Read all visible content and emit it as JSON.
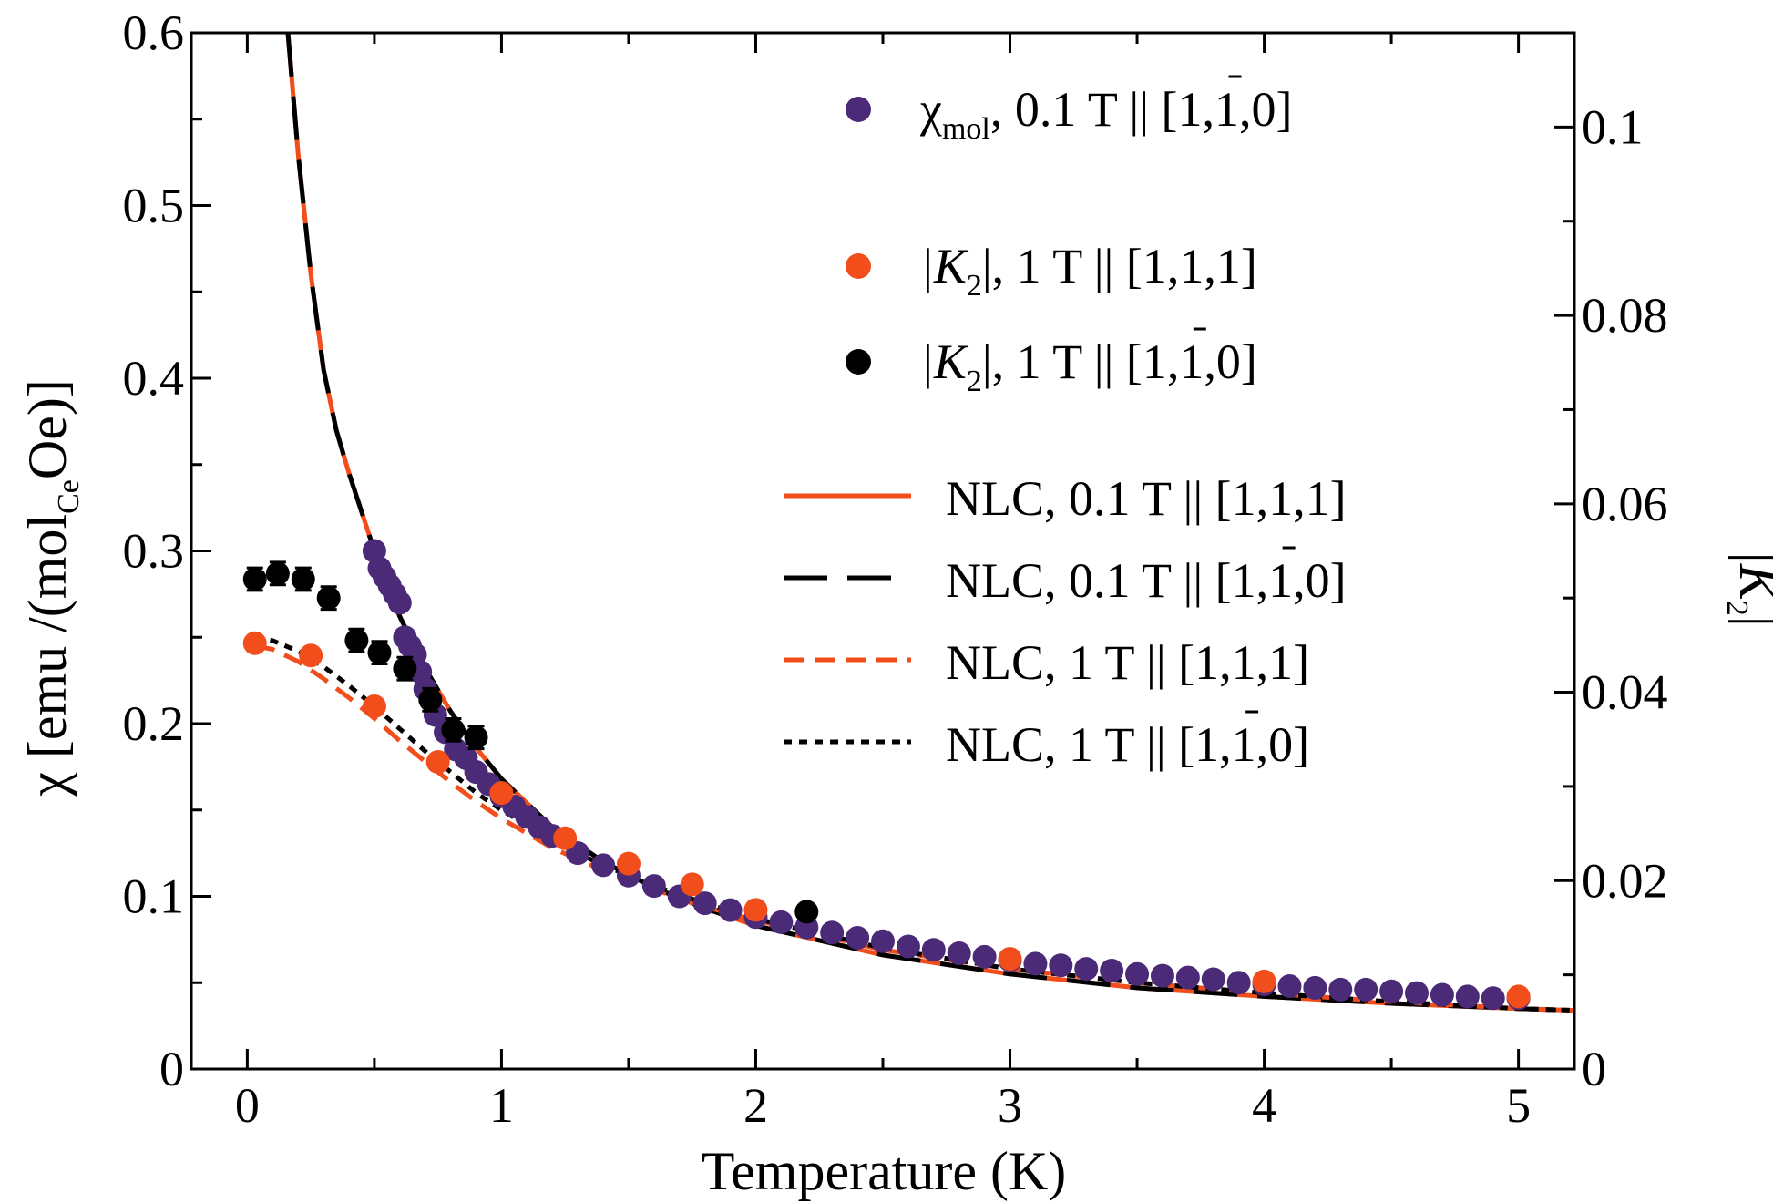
{
  "chart_data": {
    "type": "scatter",
    "title": "",
    "xlabel": "Temperature (K)",
    "ylabel": {
      "prefix": "χ [emu /(mol",
      "subscript": "Ce",
      "suffix": "Oe)]"
    },
    "y2label": {
      "text": "|K",
      "subscript": "2",
      "end": "|"
    },
    "xlim": [
      -0.22,
      5.22
    ],
    "ylim": [
      0,
      0.6
    ],
    "y2lim": [
      0,
      0.11
    ],
    "x_ticks": [
      0,
      1,
      2,
      3,
      4,
      5
    ],
    "x_tick_labels": [
      "0",
      "1",
      "2",
      "3",
      "4",
      "5"
    ],
    "y_ticks": [
      0,
      0.1,
      0.2,
      0.3,
      0.4,
      0.5,
      0.6
    ],
    "y_tick_labels": [
      "0",
      "0.1",
      "0.2",
      "0.3",
      "0.4",
      "0.5",
      "0.6"
    ],
    "y2_ticks": [
      0,
      0.02,
      0.04,
      0.06,
      0.08,
      0.1
    ],
    "y2_tick_labels": [
      "0",
      "0.02",
      "0.04",
      "0.06",
      "0.08",
      "0.1"
    ],
    "grid": false,
    "legend_position": "top-right",
    "colors": {
      "purple": "#4b2a78",
      "orange": "#f24e1c",
      "black": "#000000"
    },
    "legend": [
      {
        "marker": "circle",
        "color": "#4b2a78",
        "label_main": "χ",
        "label_sub": "mol",
        "label_rest": ",  0.1 T || [1,1,0]",
        "bar_over": true
      },
      {
        "marker": "circle",
        "color": "#f24e1c",
        "label_main": "|K",
        "label_sub": "2",
        "label_rest": "|,  1 T || [1,1,1]",
        "bar_over": false
      },
      {
        "marker": "circle",
        "color": "#000000",
        "label_main": "|K",
        "label_sub": "2",
        "label_rest": "|,  1 T || [1,1,0]",
        "bar_over": true
      },
      {
        "marker": "line-solid",
        "color": "#f24e1c",
        "label_main": "NLC,  0.1 T || [1,1,1]",
        "label_sub": "",
        "label_rest": "",
        "bar_over": false
      },
      {
        "marker": "line-longdash",
        "color": "#000000",
        "label_main": "NLC,  0.1 T || [1,1,0]",
        "label_sub": "",
        "label_rest": "",
        "bar_over": true
      },
      {
        "marker": "line-dash",
        "color": "#f24e1c",
        "label_main": "NLC,  1 T || [1,1,1]",
        "label_sub": "",
        "label_rest": "",
        "bar_over": false
      },
      {
        "marker": "line-dot",
        "color": "#000000",
        "label_main": "NLC,  1 T || [1,1,0]",
        "label_sub": "",
        "label_rest": "",
        "bar_over": true
      }
    ],
    "series": [
      {
        "name": "chi_mol 0.1 T || [1,-1,0]",
        "axis": "left",
        "kind": "points",
        "color": "#4b2a78",
        "x": [
          0.5,
          0.52,
          0.54,
          0.56,
          0.58,
          0.6,
          0.62,
          0.64,
          0.66,
          0.68,
          0.7,
          0.74,
          0.78,
          0.82,
          0.86,
          0.9,
          0.95,
          1.0,
          1.05,
          1.1,
          1.15,
          1.2,
          1.3,
          1.4,
          1.5,
          1.6,
          1.7,
          1.8,
          1.9,
          2.0,
          2.1,
          2.2,
          2.3,
          2.4,
          2.5,
          2.6,
          2.7,
          2.8,
          2.9,
          3.0,
          3.1,
          3.2,
          3.3,
          3.4,
          3.5,
          3.6,
          3.7,
          3.8,
          3.9,
          4.0,
          4.1,
          4.2,
          4.3,
          4.4,
          4.5,
          4.6,
          4.7,
          4.8,
          4.9,
          5.0
        ],
        "y": [
          0.3,
          0.29,
          0.285,
          0.28,
          0.275,
          0.27,
          0.25,
          0.245,
          0.24,
          0.23,
          0.22,
          0.205,
          0.195,
          0.185,
          0.18,
          0.172,
          0.165,
          0.158,
          0.152,
          0.146,
          0.14,
          0.135,
          0.125,
          0.118,
          0.112,
          0.106,
          0.1,
          0.096,
          0.092,
          0.088,
          0.085,
          0.082,
          0.079,
          0.076,
          0.074,
          0.071,
          0.069,
          0.067,
          0.065,
          0.063,
          0.061,
          0.06,
          0.058,
          0.057,
          0.055,
          0.054,
          0.053,
          0.052,
          0.05,
          0.049,
          0.048,
          0.047,
          0.046,
          0.046,
          0.045,
          0.044,
          0.043,
          0.042,
          0.041,
          0.041
        ]
      },
      {
        "name": "|K2| 1 T || [1,1,1]",
        "axis": "right",
        "kind": "points",
        "color": "#f24e1c",
        "x": [
          0.03,
          0.25,
          0.5,
          0.75,
          1.0,
          1.25,
          1.5,
          1.75,
          2.0,
          3.0,
          4.0,
          5.0
        ],
        "y": [
          0.0452,
          0.0439,
          0.0385,
          0.0326,
          0.0293,
          0.0245,
          0.0218,
          0.0196,
          0.0169,
          0.0117,
          0.0093,
          0.0077
        ]
      },
      {
        "name": "|K2| 1 T || [1,-1,0]",
        "axis": "right",
        "kind": "points",
        "color": "#000000",
        "x": [
          0.03,
          0.12,
          0.22,
          0.32,
          0.43,
          0.52,
          0.62,
          0.72,
          0.81,
          0.9,
          2.2
        ],
        "y": [
          0.052,
          0.0526,
          0.052,
          0.05,
          0.0455,
          0.0442,
          0.0425,
          0.0392,
          0.036,
          0.0352,
          0.0167
        ],
        "yerr": [
          0.0012,
          0.0012,
          0.0012,
          0.0012,
          0.0012,
          0.0012,
          0.0012,
          0.0012,
          0.0012,
          0.0012,
          0
        ]
      },
      {
        "name": "NLC 0.1 T || [1,1,1]",
        "axis": "left",
        "kind": "line-solid",
        "color": "#f24e1c",
        "x": [
          0.16,
          0.2,
          0.25,
          0.3,
          0.35,
          0.4,
          0.5,
          0.6,
          0.7,
          0.8,
          0.9,
          1.0,
          1.2,
          1.4,
          1.6,
          1.8,
          2.0,
          2.5,
          3.0,
          3.5,
          4.0,
          4.5,
          5.0,
          5.22
        ],
        "y": [
          0.6,
          0.53,
          0.46,
          0.405,
          0.37,
          0.345,
          0.3,
          0.262,
          0.232,
          0.207,
          0.186,
          0.168,
          0.14,
          0.12,
          0.105,
          0.093,
          0.083,
          0.066,
          0.055,
          0.047,
          0.042,
          0.038,
          0.035,
          0.034
        ]
      },
      {
        "name": "NLC 0.1 T || [1,-1,0]",
        "axis": "left",
        "kind": "line-longdash",
        "color": "#000000",
        "x": [
          0.16,
          0.2,
          0.25,
          0.3,
          0.35,
          0.4,
          0.5,
          0.6,
          0.7,
          0.8,
          0.9,
          1.0,
          1.2,
          1.4,
          1.6,
          1.8,
          2.0,
          2.5,
          3.0,
          3.5,
          4.0,
          4.5,
          5.0,
          5.22
        ],
        "y": [
          0.6,
          0.53,
          0.46,
          0.405,
          0.37,
          0.345,
          0.3,
          0.262,
          0.232,
          0.207,
          0.186,
          0.168,
          0.14,
          0.12,
          0.105,
          0.093,
          0.083,
          0.066,
          0.055,
          0.047,
          0.042,
          0.038,
          0.035,
          0.034
        ]
      },
      {
        "name": "NLC 1 T || [1,1,1]",
        "axis": "left",
        "kind": "line-dash",
        "color": "#f24e1c",
        "x": [
          0.03,
          0.1,
          0.2,
          0.3,
          0.4,
          0.5,
          0.6,
          0.7,
          0.8,
          0.9,
          1.0,
          1.2,
          1.4,
          1.6,
          1.8,
          2.0,
          2.5,
          3.0,
          3.5,
          4.0,
          4.5,
          5.0,
          5.22
        ],
        "y": [
          0.245,
          0.243,
          0.236,
          0.226,
          0.215,
          0.203,
          0.19,
          0.178,
          0.166,
          0.155,
          0.145,
          0.128,
          0.115,
          0.104,
          0.094,
          0.086,
          0.069,
          0.058,
          0.05,
          0.044,
          0.039,
          0.035,
          0.034
        ]
      },
      {
        "name": "NLC 1 T || [1,-1,0]",
        "axis": "left",
        "kind": "line-dot",
        "color": "#000000",
        "x": [
          0.03,
          0.1,
          0.2,
          0.3,
          0.4,
          0.5,
          0.6,
          0.7,
          0.8,
          0.9,
          1.0,
          1.2,
          1.4,
          1.6,
          1.8,
          2.0,
          2.5,
          3.0,
          3.5,
          4.0,
          4.5,
          5.0,
          5.22
        ],
        "y": [
          0.25,
          0.248,
          0.242,
          0.233,
          0.222,
          0.21,
          0.197,
          0.184,
          0.172,
          0.16,
          0.15,
          0.132,
          0.118,
          0.106,
          0.096,
          0.087,
          0.07,
          0.058,
          0.05,
          0.044,
          0.039,
          0.035,
          0.034
        ]
      }
    ]
  }
}
